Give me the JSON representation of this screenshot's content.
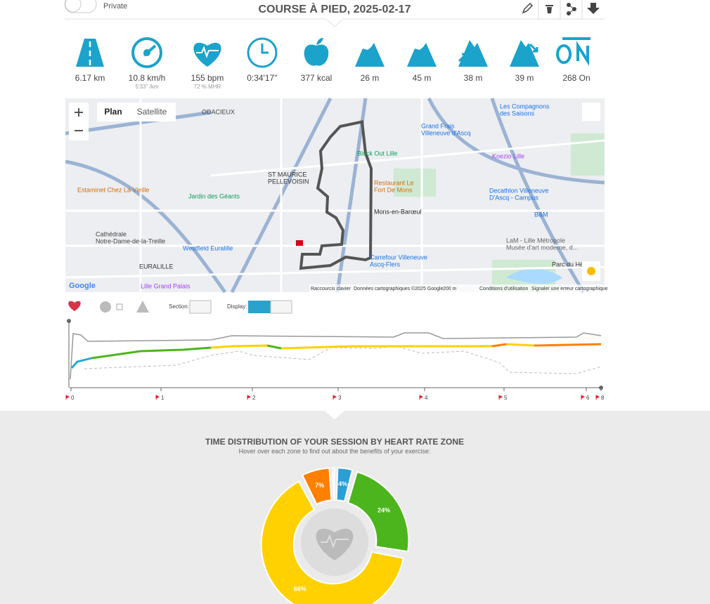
{
  "header": {
    "private_label": "Private",
    "title": "COURSE À PIED, 2025-02-17"
  },
  "stats": [
    {
      "value": "6.17 km"
    },
    {
      "value": "10.8 km/h",
      "sub": "5'33'' /km"
    },
    {
      "value": "155 bpm",
      "sub": "72 % MHR"
    },
    {
      "value": "0:34'17''"
    },
    {
      "value": "377 kcal"
    },
    {
      "value": "26 m"
    },
    {
      "value": "45 m"
    },
    {
      "value": "38 m"
    },
    {
      "value": "39 m"
    },
    {
      "value": "268 On"
    }
  ],
  "map": {
    "buttons": [
      "Plan",
      "Satellite"
    ],
    "places": [
      {
        "lines": [
          "ODACIEUX"
        ]
      },
      {
        "lines": [
          "ST MAURICE",
          "PELLEVOISIN"
        ]
      },
      {
        "lines": [
          "Jardin des Géants"
        ]
      },
      {
        "lines": [
          "Mons-en-Barœul"
        ]
      },
      {
        "lines": [
          "Block Out Lille"
        ]
      },
      {
        "lines": [
          "Restaurant Le",
          "Fort De Mons"
        ]
      },
      {
        "lines": [
          "Grand Frais",
          "Villeneuve d'Ascq"
        ]
      },
      {
        "lines": [
          "Les Compagnons",
          "des Saisons"
        ]
      },
      {
        "lines": [
          "Koezio Lille"
        ]
      },
      {
        "lines": [
          "Decathlon Villeneuve",
          "D'Ascq - Campus"
        ]
      },
      {
        "lines": [
          "B&M"
        ]
      },
      {
        "lines": [
          "Estaminet Chez La Vieille"
        ]
      },
      {
        "lines": [
          "Westfield Euralille"
        ]
      },
      {
        "lines": [
          "EURALILLE"
        ]
      },
      {
        "lines": [
          "Lille Grand Palais"
        ]
      },
      {
        "lines": [
          "Carrefour Villeneuve",
          "Ascq-Flers"
        ]
      },
      {
        "lines": [
          "Cathédrale",
          "Notre-Dame-de-la-Treille"
        ]
      },
      {
        "lines": [
          "LaM - Lille Métropole",
          "Musée d'art moderne, d..."
        ]
      },
      {
        "lines": [
          "Parc du Héron"
        ]
      }
    ],
    "footer": [
      "Raccourcis clavier",
      "Données cartographiques ©2025 Google",
      "200 m",
      "Conditions d'utilisation",
      "Signaler une erreur cartographique"
    ],
    "logo": "Google"
  },
  "controls": {
    "section": "Section:",
    "display": "Display:"
  },
  "graph": {
    "x_labels": [
      "0",
      "1",
      "2",
      "3",
      "4",
      "5",
      "6",
      "8"
    ]
  },
  "chart_data": {
    "type": "pie",
    "title": "TIME DISTRIBUTION OF YOUR SESSION BY HEART RATE ZONE",
    "subtitle": "Hover over each zone to find out about the benefits of your exercise:",
    "values": [
      4,
      24,
      66,
      7,
      1
    ],
    "value_labels": [
      "4%",
      "24%",
      "66%",
      "7%",
      null
    ],
    "colors": [
      "#2a9fd6",
      "#4cb51d",
      "#ffd100",
      "#ff8000",
      "#e0202a"
    ]
  }
}
